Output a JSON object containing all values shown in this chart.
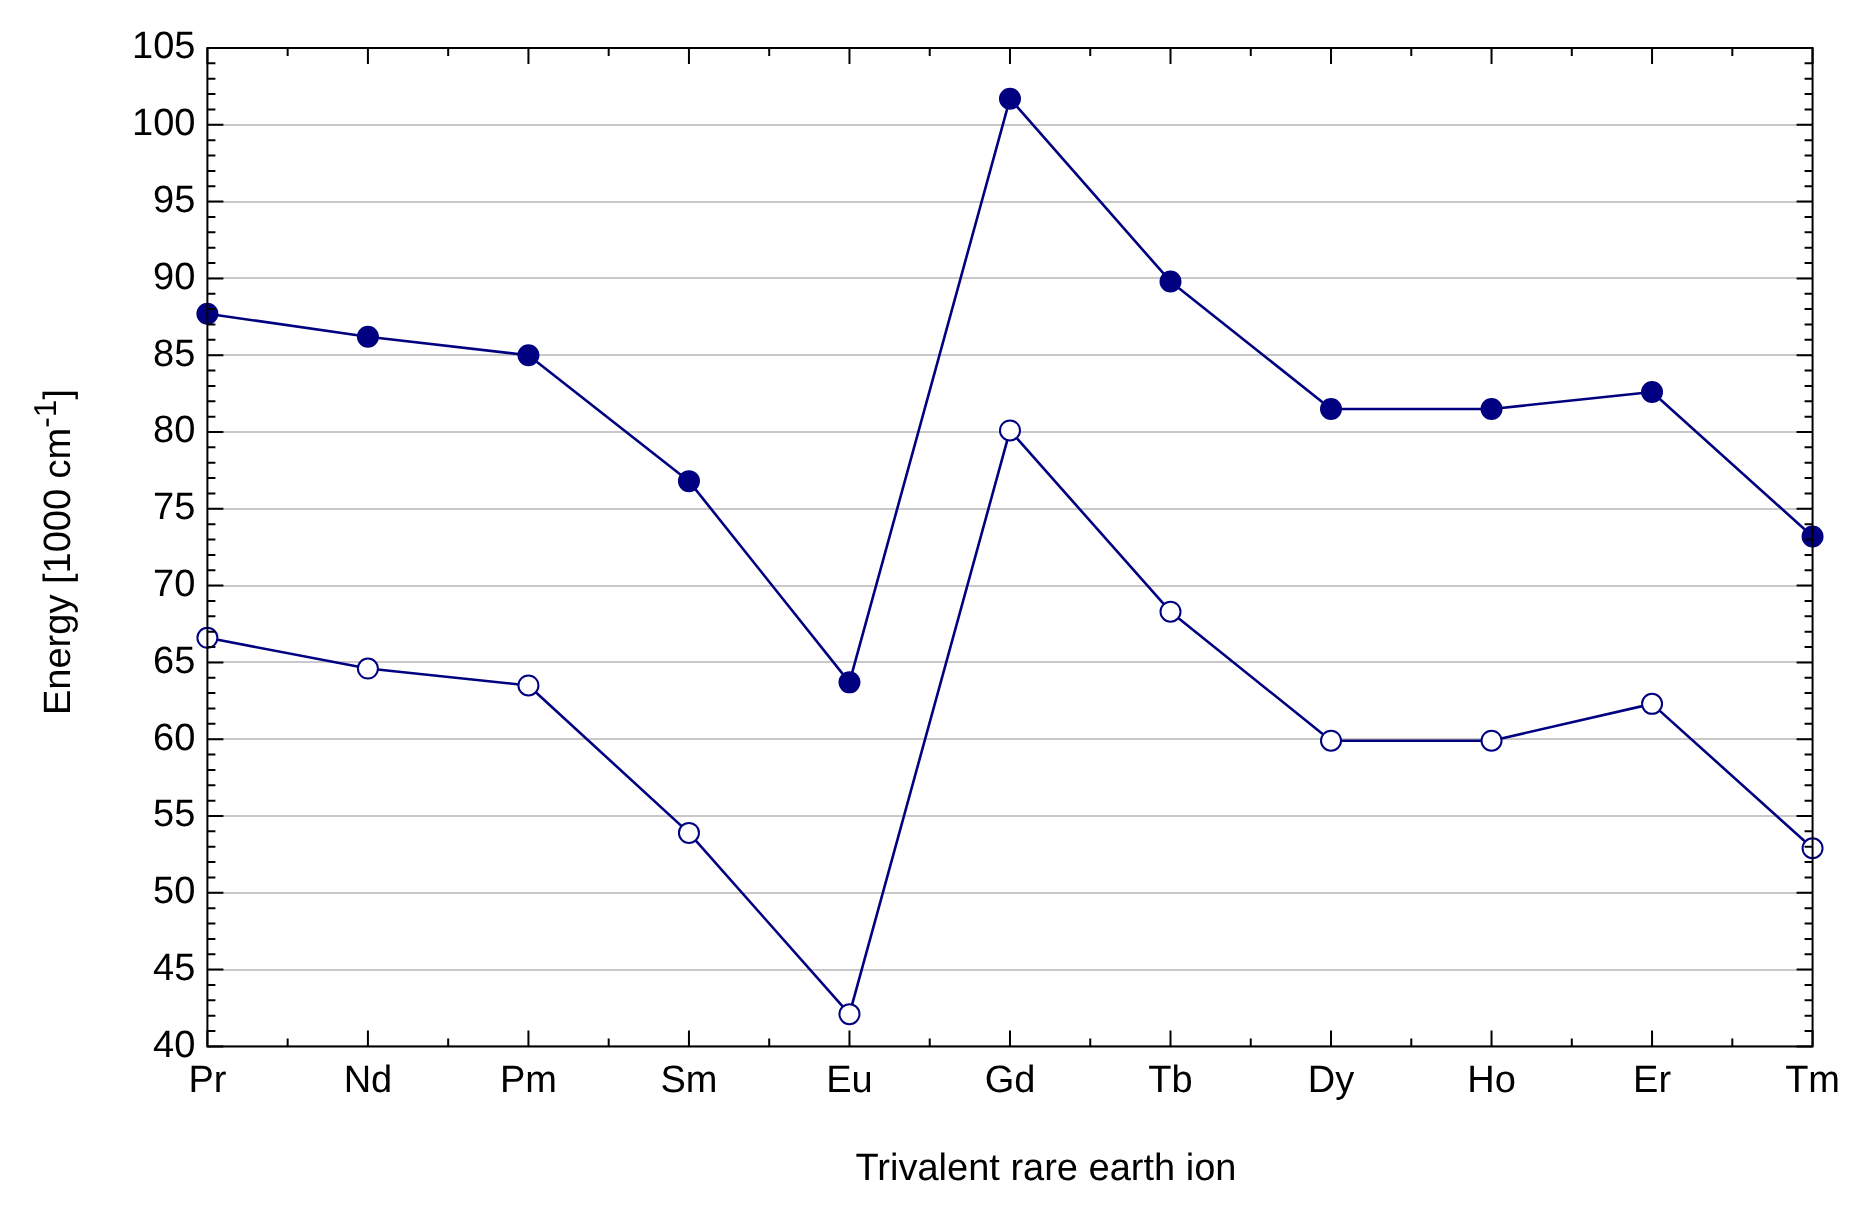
{
  "chart_data": {
    "type": "line",
    "xlabel": "Trivalent rare earth ion",
    "ylabel": "Energy [1000 cm$^{-1}$]",
    "categories": [
      "Pr",
      "Nd",
      "Pm",
      "Sm",
      "Eu",
      "Gd",
      "Tb",
      "Dy",
      "Ho",
      "Er",
      "Tm"
    ],
    "series": [
      {
        "color": "#000080",
        "values": [
          87.7,
          86.2,
          85.0,
          76.8,
          63.7,
          101.7,
          89.8,
          81.5,
          81.5,
          82.6,
          73.2
        ]
      },
      {
        "color": "#000080",
        "colors": [
          "#ffffff",
          "#ffffff",
          "#ffffff",
          "#ffffff",
          "#ffffff",
          "#ffffff",
          "#ffffff",
          "#ffffff",
          "#ffffff",
          "#ffffff",
          "#ffffff"
        ],
        "values": [
          66.6,
          64.6,
          63.5,
          53.9,
          42.1,
          80.1,
          68.3,
          59.9,
          59.9,
          62.3,
          52.9
        ]
      }
    ],
    "ylim": [
      40,
      105
    ],
    "yticks": [
      40,
      45,
      50,
      55,
      60,
      65,
      70,
      75,
      80,
      85,
      90,
      95,
      100,
      105
    ],
    "grid": "y",
    "marker": "circle",
    "line_style": "solid"
  }
}
